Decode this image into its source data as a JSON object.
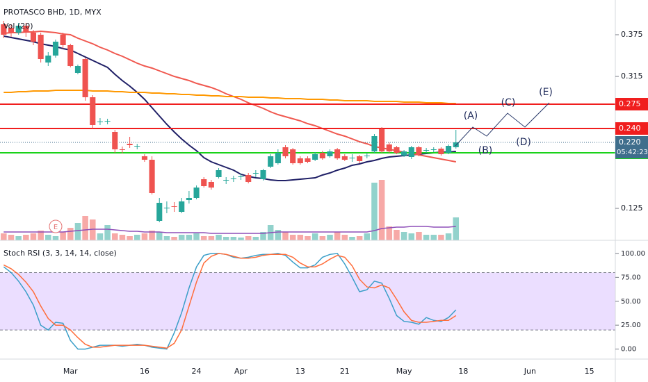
{
  "header": {
    "title": "PROTASCO BHD, 1D, MYX"
  },
  "chart_data": [
    {
      "type": "candlestick",
      "categories": [
        null,
        null,
        null,
        null,
        null,
        null,
        null,
        null,
        null,
        "Mar",
        null,
        null,
        null,
        null,
        null,
        null,
        null,
        null,
        null,
        "16",
        null,
        null,
        null,
        null,
        null,
        null,
        "24",
        null,
        null,
        null,
        null,
        null,
        "Apr",
        null,
        null,
        null,
        null,
        null,
        null,
        null,
        "13",
        null,
        null,
        null,
        null,
        null,
        "21",
        null,
        null,
        null,
        null,
        null,
        null,
        null,
        "May",
        null,
        null,
        null,
        null,
        null,
        null,
        null,
        "18",
        null,
        null,
        null,
        null,
        null,
        null,
        null,
        null,
        "Jun",
        null,
        null,
        null,
        null,
        null,
        null,
        null,
        "15",
        null,
        null,
        null
      ],
      "open": [
        0.39,
        0.385,
        0.378,
        0.388,
        0.378,
        0.375,
        0.335,
        0.345,
        0.375,
        0.36,
        0.32,
        0.34,
        0.285,
        0.25,
        0.25,
        0.235,
        0.21,
        0.218,
        0.214,
        0.2,
        0.195,
        0.107,
        0.125,
        0.128,
        0.12,
        0.137,
        0.14,
        0.167,
        0.163,
        0.17,
        0.165,
        0.167,
        0.17,
        0.173,
        0.175,
        0.167,
        0.185,
        0.19,
        0.213,
        0.21,
        0.197,
        0.197,
        0.195,
        0.205,
        0.2,
        0.21,
        0.2,
        0.197,
        0.2,
        0.2,
        0.207,
        0.239,
        0.217,
        0.213,
        0.201,
        0.199,
        0.213,
        0.209,
        0.209,
        0.211,
        0.205,
        0.213,
        null,
        null,
        null,
        null,
        null,
        null,
        null,
        null,
        null,
        null,
        null,
        null,
        null,
        null,
        null,
        null,
        null,
        null,
        null,
        null,
        null
      ],
      "high": [
        0.395,
        0.39,
        0.392,
        0.392,
        0.382,
        0.378,
        0.35,
        0.368,
        0.378,
        0.362,
        0.332,
        0.342,
        0.288,
        0.255,
        0.254,
        0.238,
        0.214,
        0.228,
        0.218,
        0.203,
        0.2,
        0.14,
        0.135,
        0.134,
        0.14,
        0.15,
        0.158,
        0.17,
        0.166,
        0.183,
        0.17,
        0.172,
        0.175,
        0.176,
        0.18,
        0.182,
        0.203,
        0.21,
        0.216,
        0.212,
        0.2,
        0.2,
        0.206,
        0.208,
        0.21,
        0.212,
        0.203,
        0.203,
        0.202,
        0.205,
        0.232,
        0.242,
        0.22,
        0.215,
        0.209,
        0.215,
        0.215,
        0.212,
        0.213,
        0.213,
        0.217,
        0.238,
        null,
        null,
        null,
        null,
        null,
        null,
        null,
        null,
        null,
        null,
        null,
        null,
        null,
        null,
        null,
        null,
        null,
        null,
        null,
        null,
        null
      ],
      "low": [
        0.37,
        0.372,
        0.375,
        0.372,
        0.36,
        0.335,
        0.33,
        0.342,
        0.355,
        0.328,
        0.318,
        0.28,
        0.24,
        0.245,
        0.246,
        0.205,
        0.204,
        0.212,
        0.21,
        0.192,
        0.145,
        0.105,
        0.118,
        0.12,
        0.118,
        0.132,
        0.138,
        0.155,
        0.152,
        0.168,
        0.16,
        0.163,
        0.166,
        0.161,
        0.17,
        0.165,
        0.183,
        0.188,
        0.197,
        0.188,
        0.188,
        0.19,
        0.193,
        0.195,
        0.198,
        0.195,
        0.193,
        0.192,
        0.19,
        0.197,
        0.205,
        0.205,
        0.205,
        0.203,
        0.199,
        0.196,
        0.2,
        0.205,
        0.206,
        0.201,
        0.203,
        0.211,
        null,
        null,
        null,
        null,
        null,
        null,
        null,
        null,
        null,
        null,
        null,
        null,
        null,
        null,
        null,
        null,
        null,
        null,
        null,
        null,
        null
      ],
      "close": [
        0.375,
        0.378,
        0.388,
        0.378,
        0.365,
        0.34,
        0.345,
        0.365,
        0.36,
        0.33,
        0.33,
        0.285,
        0.245,
        0.25,
        0.251,
        0.21,
        0.209,
        0.216,
        0.215,
        0.195,
        0.147,
        0.133,
        0.126,
        0.127,
        0.135,
        0.14,
        0.155,
        0.157,
        0.155,
        0.18,
        0.166,
        0.168,
        0.171,
        0.163,
        0.176,
        0.18,
        0.2,
        0.205,
        0.2,
        0.19,
        0.19,
        0.192,
        0.203,
        0.197,
        0.207,
        0.197,
        0.195,
        0.198,
        0.193,
        0.201,
        0.229,
        0.207,
        0.207,
        0.205,
        0.207,
        0.213,
        0.203,
        0.209,
        0.21,
        0.203,
        0.215,
        0.22,
        null,
        null,
        null,
        null,
        null,
        null,
        null,
        null,
        null,
        null,
        null,
        null,
        null,
        null,
        null,
        null,
        null,
        null,
        null,
        null,
        null
      ],
      "up_color": "#26a69a",
      "down_color": "#ef5350",
      "series": [
        {
          "color": "#1f1f66",
          "values": [
            0.373,
            0.371,
            0.369,
            0.367,
            0.365,
            0.362,
            0.36,
            0.358,
            0.355,
            0.353,
            0.348,
            0.343,
            0.338,
            0.333,
            0.328,
            0.318,
            0.309,
            0.301,
            0.292,
            0.282,
            0.27,
            0.258,
            0.246,
            0.235,
            0.225,
            0.216,
            0.208,
            0.198,
            0.192,
            0.188,
            0.184,
            0.18,
            0.174,
            0.171,
            0.169,
            0.168,
            0.166,
            0.165,
            0.165,
            0.166,
            0.167,
            0.168,
            0.169,
            0.173,
            0.176,
            0.18,
            0.183,
            0.187,
            0.189,
            0.192,
            0.194,
            0.197,
            0.199,
            0.2,
            0.201,
            0.202,
            0.203,
            0.204,
            0.205,
            0.206,
            0.206,
            0.207,
            null,
            null,
            null,
            null,
            null,
            null,
            null,
            null,
            null,
            null,
            null,
            null,
            null,
            null,
            null,
            null,
            null,
            null,
            null,
            null,
            null
          ]
        },
        {
          "color": "#f0584f",
          "values": [
            0.377,
            0.378,
            0.378,
            0.379,
            0.379,
            0.38,
            0.379,
            0.378,
            0.376,
            0.375,
            0.37,
            0.366,
            0.362,
            0.357,
            0.353,
            0.348,
            0.344,
            0.339,
            0.334,
            0.33,
            0.327,
            0.323,
            0.319,
            0.315,
            0.312,
            0.309,
            0.305,
            0.302,
            0.299,
            0.295,
            0.29,
            0.286,
            0.282,
            0.277,
            0.273,
            0.269,
            0.264,
            0.26,
            0.257,
            0.254,
            0.251,
            0.247,
            0.244,
            0.24,
            0.236,
            0.232,
            0.229,
            0.225,
            0.221,
            0.218,
            0.214,
            0.212,
            0.21,
            0.208,
            0.206,
            0.204,
            0.202,
            0.2,
            0.198,
            0.196,
            0.194,
            0.192,
            null,
            null,
            null,
            null,
            null,
            null,
            null,
            null,
            null,
            null,
            null,
            null,
            null,
            null,
            null,
            null,
            null,
            null,
            null,
            null,
            null
          ]
        },
        {
          "color": "#ff9800",
          "values": [
            0.292,
            0.292,
            0.293,
            0.293,
            0.294,
            0.294,
            0.294,
            0.295,
            0.295,
            0.295,
            0.295,
            0.295,
            0.294,
            0.294,
            0.294,
            0.293,
            0.293,
            0.292,
            0.292,
            0.292,
            0.291,
            0.291,
            0.29,
            0.29,
            0.289,
            0.289,
            0.288,
            0.288,
            0.287,
            0.287,
            0.286,
            0.286,
            0.286,
            0.285,
            0.285,
            0.285,
            0.284,
            0.284,
            0.283,
            0.283,
            0.283,
            0.282,
            0.282,
            0.282,
            0.281,
            0.281,
            0.28,
            0.28,
            0.28,
            0.28,
            0.279,
            0.279,
            0.279,
            0.279,
            0.278,
            0.278,
            0.278,
            0.277,
            0.277,
            0.277,
            0.276,
            0.276,
            null,
            null,
            null,
            null,
            null,
            null,
            null,
            null,
            null,
            null,
            null,
            null,
            null,
            null,
            null,
            null,
            null,
            null,
            null,
            null,
            null
          ]
        }
      ],
      "ylim": [
        0.079,
        0.425
      ],
      "yticks": [
        0.125,
        0.315,
        0.375
      ],
      "levels": [
        {
          "value": 0.275,
          "color": "#f01e1e"
        },
        {
          "value": 0.24,
          "label": "0.240",
          "color": "#f01e1e"
        },
        {
          "value": 0.205,
          "color": "#19d219"
        }
      ],
      "last_price": {
        "value": 0.22,
        "label": "0.220",
        "color": "#3f6e8c"
      },
      "countdown": "05:42:23",
      "volume": {
        "label": "Vol (20)",
        "up_color": "rgba(38,166,154,0.5)",
        "down_color": "rgba(239,83,80,0.5)",
        "ma_color": "#8e4fb8",
        "values": [
          10,
          8,
          6,
          8,
          10,
          14,
          8,
          6,
          12,
          18,
          25,
          35,
          30,
          10,
          22,
          10,
          8,
          6,
          8,
          10,
          14,
          12,
          6,
          5,
          8,
          8,
          10,
          6,
          6,
          8,
          5,
          5,
          4,
          6,
          5,
          12,
          22,
          15,
          12,
          8,
          8,
          6,
          10,
          6,
          8,
          12,
          8,
          5,
          6,
          10,
          83,
          87,
          20,
          15,
          12,
          10,
          12,
          8,
          8,
          8,
          10,
          33,
          null,
          null,
          null,
          null,
          null,
          null,
          null,
          null,
          null,
          null,
          null,
          null,
          null,
          null,
          null,
          null,
          null,
          null,
          null,
          null,
          null
        ],
        "ma_values": [
          12,
          12,
          12,
          12,
          12,
          12,
          12,
          12,
          12,
          13,
          14,
          15,
          16,
          16,
          16,
          15,
          14,
          13,
          13,
          12,
          12,
          12,
          11,
          11,
          11,
          11,
          11,
          11,
          10,
          10,
          10,
          10,
          10,
          10,
          10,
          10,
          11,
          12,
          12,
          12,
          12,
          12,
          12,
          12,
          12,
          12,
          12,
          12,
          12,
          12,
          14,
          17,
          18,
          19,
          19,
          20,
          20,
          20,
          19,
          19,
          19,
          20,
          null,
          null,
          null,
          null,
          null,
          null,
          null,
          null,
          null,
          null,
          null,
          null,
          null,
          null,
          null,
          null,
          null,
          null,
          null,
          null,
          null
        ]
      },
      "earnings_marker": "E",
      "waves": [
        "(A)",
        "(B)",
        "(C)",
        "(D)",
        "(E)"
      ]
    },
    {
      "type": "line",
      "title": "Stoch RSI (3, 3, 14, 14, close)",
      "series": [
        {
          "color": "#3a9ec8",
          "values": [
            86,
            80,
            71,
            60,
            46,
            25,
            20,
            28,
            27,
            9,
            0,
            0,
            2,
            4,
            4,
            4,
            3,
            4,
            5,
            4,
            2,
            1,
            0,
            17,
            38,
            64,
            86,
            98,
            100,
            100,
            99,
            96,
            95,
            96,
            98,
            99,
            99,
            100,
            98,
            91,
            85,
            85,
            88,
            96,
            99,
            100,
            89,
            75,
            60,
            62,
            71,
            69,
            53,
            35,
            29,
            28,
            26,
            33,
            30,
            29,
            33,
            41,
            null,
            null,
            null,
            null,
            null,
            null,
            null,
            null,
            null,
            null,
            null,
            null,
            null,
            null,
            null,
            null,
            null,
            null,
            null,
            null,
            null
          ]
        },
        {
          "color": "#ff6d3a",
          "values": [
            88,
            84,
            78,
            70,
            60,
            45,
            32,
            25,
            25,
            20,
            12,
            5,
            2,
            2,
            3,
            4,
            4,
            4,
            4,
            4,
            3,
            2,
            1,
            6,
            20,
            45,
            70,
            90,
            97,
            100,
            99,
            97,
            95,
            95,
            96,
            98,
            99,
            99,
            99,
            96,
            90,
            86,
            86,
            89,
            94,
            98,
            96,
            87,
            73,
            65,
            64,
            67,
            64,
            52,
            39,
            30,
            28,
            28,
            29,
            30,
            30,
            35,
            null,
            null,
            null,
            null,
            null,
            null,
            null,
            null,
            null,
            null,
            null,
            null,
            null,
            null,
            null,
            null,
            null,
            null,
            null,
            null,
            null
          ]
        }
      ],
      "ylim": [
        -9,
        113
      ],
      "yticks": [
        {
          "value": 100,
          "label": "100.00"
        },
        {
          "value": 75,
          "label": "75.00"
        },
        {
          "value": 50,
          "label": "50.00"
        },
        {
          "value": 25,
          "label": "25.00"
        },
        {
          "value": 0,
          "label": "0.00"
        }
      ],
      "band": [
        20,
        80
      ],
      "band_color": "rgba(156,92,255,0.2)"
    }
  ]
}
